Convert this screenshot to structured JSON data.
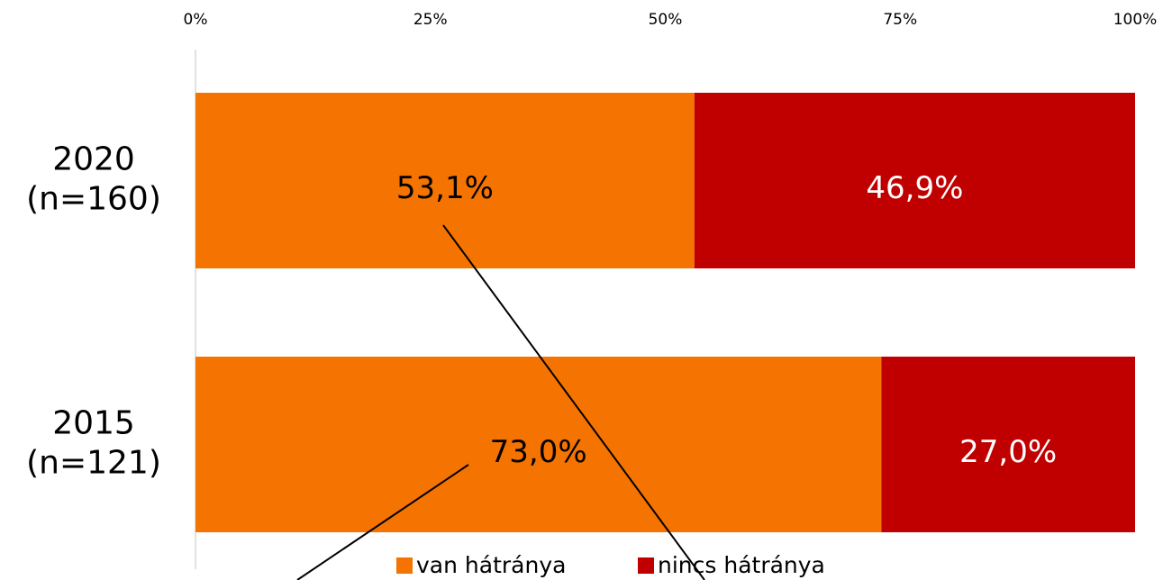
{
  "chart_data": {
    "type": "stacked_barh",
    "categories": [
      [
        "2020",
        "(n=160)"
      ],
      [
        "2015",
        "(n=121)"
      ]
    ],
    "series": [
      {
        "name": "van hátránya",
        "color": "#f57300",
        "label_color": "#000000",
        "values": [
          53.1,
          73.0
        ],
        "value_labels": [
          "53,1%",
          "73,0%"
        ]
      },
      {
        "name": "nincs hátránya",
        "color": "#c00000",
        "label_color": "#ffffff",
        "values": [
          46.9,
          27.0
        ],
        "value_labels": [
          "46,9%",
          "27,0%"
        ]
      }
    ],
    "xlim": [
      0,
      100
    ],
    "xticks": [
      {
        "value": 0,
        "label": "0%"
      },
      {
        "value": 25,
        "label": "25%"
      },
      {
        "value": 50,
        "label": "50%"
      },
      {
        "value": 75,
        "label": "75%"
      },
      {
        "value": 100,
        "label": "100%"
      }
    ],
    "legend": "bottom"
  }
}
